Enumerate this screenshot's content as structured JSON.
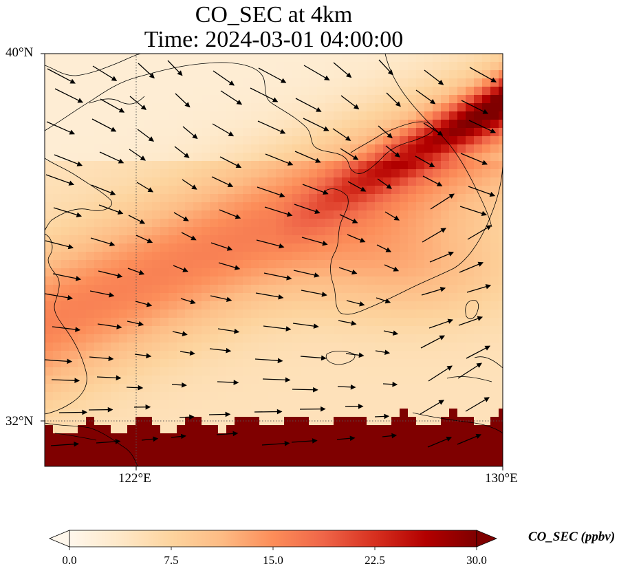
{
  "title": {
    "line1": "CO_SEC at 4km",
    "line2": "Time: 2024-03-01 04:00:00"
  },
  "axes": {
    "lat_ticks": [
      "40°N",
      "32°N"
    ],
    "lon_ticks": [
      "122°E",
      "130°E"
    ]
  },
  "colorbar": {
    "label": "CO_SEC (ppbv)",
    "ticks": [
      "0.0",
      "7.5",
      "15.0",
      "22.5",
      "30.0"
    ],
    "colormap": [
      "#fff7ec",
      "#fee8c8",
      "#fdd49e",
      "#fdbb84",
      "#fc8d59",
      "#ef6548",
      "#d7301f",
      "#b30000",
      "#7f0000"
    ],
    "extend": "both"
  },
  "chart_data": {
    "type": "heatmap",
    "variable": "CO_SEC",
    "units": "ppbv",
    "level": "4km",
    "time": "2024-03-01 04:00:00",
    "lon_range": [
      120,
      130
    ],
    "lat_range": [
      31,
      40
    ],
    "color_range": [
      0,
      30
    ],
    "gridlines": {
      "lon": [
        122,
        130
      ],
      "lat": [
        32,
        40
      ],
      "style": "dotted"
    },
    "plume_band": {
      "description": "high-concentration band along wind direction"
    },
    "wind_vectors": "present"
  }
}
